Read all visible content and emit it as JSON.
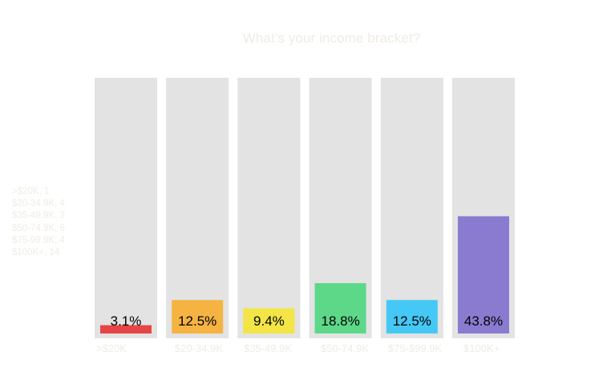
{
  "chart_data": {
    "type": "bar",
    "title": "What’s your income bracket?",
    "categories": [
      ">$20K",
      "$20-34.9K",
      "$35-49.9K",
      "$50-74.9K",
      "$75-$99.9K",
      "$100K+"
    ],
    "values": [
      3.1,
      12.5,
      9.4,
      18.8,
      12.5,
      43.8
    ],
    "value_labels": [
      "3.1%",
      "12.5%",
      "9.4%",
      "18.8%",
      "12.5%",
      "43.8%"
    ],
    "counts_legend": [
      ">$20K, 1",
      "$20-34.9K, 4",
      "$35-49.9K, 3",
      "$50-74.9K, 6",
      "$75-99.9K, 4",
      "$100K+, 14"
    ],
    "colors": [
      "#e64545",
      "#f5b342",
      "#f2e545",
      "#5dd888",
      "#45c8f5",
      "#8a7bd1"
    ],
    "track_color": "#e3e3e3",
    "ylim": [
      0,
      100
    ],
    "legend_position": "left",
    "grid": false
  }
}
